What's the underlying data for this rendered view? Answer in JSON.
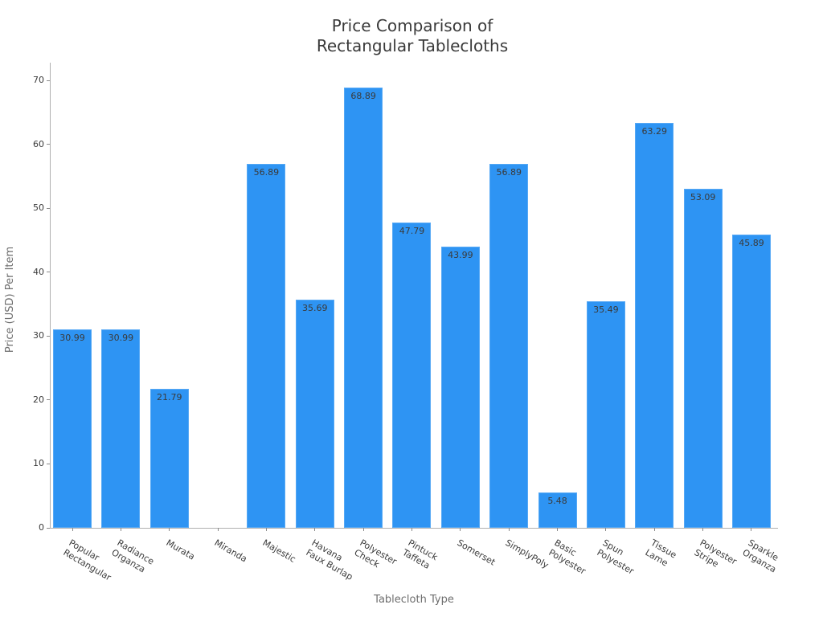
{
  "title": {
    "line1": "Price Comparison of",
    "line2": "Rectangular Tablecloths"
  },
  "chart_data": {
    "type": "bar",
    "title": "Price Comparison of\nRectangular Tablecloths",
    "xlabel": "Tablecloth Type",
    "ylabel": "Price (USD) Per Item",
    "categories": [
      "Popular\nRectangular",
      "Radiance\nOrganza",
      "Murata",
      "Miranda",
      "Majestic",
      "Havana\nFaux Burlap",
      "Polyester\nCheck",
      "Pintuck\nTaffeta",
      "Somerset",
      "SimplyPoly",
      "Basic\nPolyester",
      "Spun\nPolyester",
      "Tissue\nLame",
      "Polyester\nStripe",
      "Sparkle\nOrganza"
    ],
    "values": [
      30.99,
      30.99,
      21.79,
      0,
      56.89,
      35.69,
      68.89,
      47.79,
      43.99,
      56.89,
      5.48,
      35.49,
      63.29,
      53.09,
      45.89
    ],
    "bar_labels": [
      "30.99",
      "30.99",
      "21.79",
      "",
      "56.89",
      "35.69",
      "68.89",
      "47.79",
      "43.99",
      "56.89",
      "5.48",
      "35.49",
      "63.29",
      "53.09",
      "45.89"
    ],
    "yticks": [
      0,
      10,
      20,
      30,
      40,
      50,
      60,
      70
    ],
    "ylim": [
      0,
      72.8
    ],
    "grid": false,
    "legend": "none",
    "bar_color": "#2E94F3",
    "value_label_color": "#3a3a3a",
    "tick_label_color": "#3a3a3a",
    "axis_label_color": "#6e6e6e",
    "spine_color": "#b0b0b0"
  }
}
